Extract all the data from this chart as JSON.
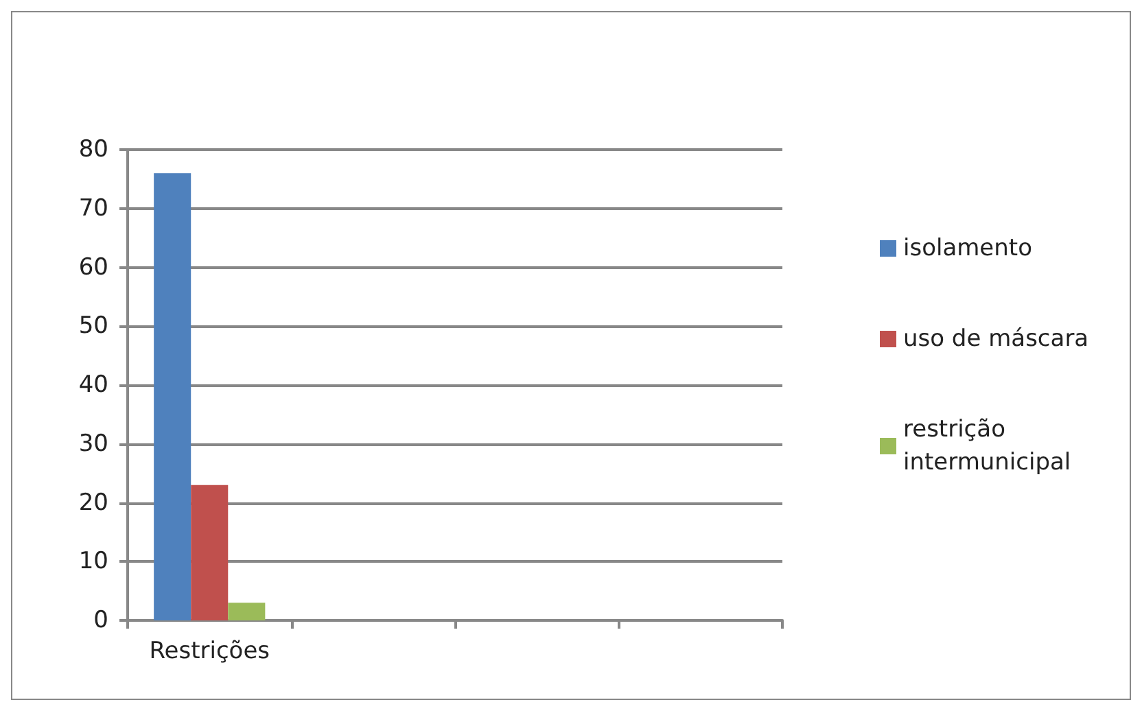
{
  "chart_data": {
    "type": "bar",
    "categories": [
      "Restrições",
      null,
      null,
      null
    ],
    "series": [
      {
        "name": "isolamento",
        "color": "#4f81bd",
        "values": [
          76,
          null,
          null,
          null
        ]
      },
      {
        "name": "uso de máscara",
        "color": "#c0504d",
        "values": [
          23,
          null,
          null,
          null
        ]
      },
      {
        "name": "restrição intermunicipal",
        "color": "#9bbb59",
        "values": [
          3,
          null,
          null,
          null
        ]
      }
    ],
    "ylim": [
      0,
      80
    ],
    "yticks": [
      0,
      10,
      20,
      30,
      40,
      50,
      60,
      70,
      80
    ],
    "grid": "y",
    "legend": "right"
  }
}
